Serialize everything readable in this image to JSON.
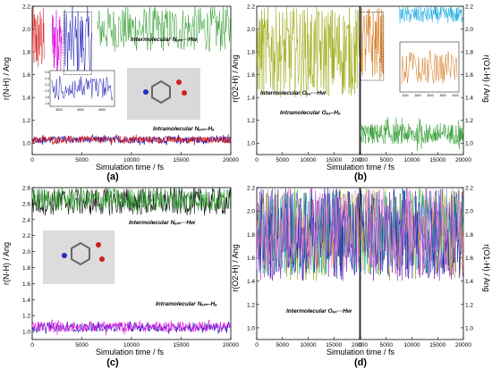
{
  "colors": {
    "red": "#d62020",
    "magenta": "#e010e0",
    "blue": "#1a1ab8",
    "green": "#2a9a2a",
    "olive": "#9aaa10",
    "orange": "#d07010",
    "cyan": "#10a8e0",
    "purple": "#8010a0",
    "pink": "#f07ad0",
    "black": "#111111",
    "lightgreen": "#3fbf3f",
    "teal": "#0aa0a0"
  },
  "chart_data": [
    {
      "type": "line",
      "panel_label": "(a)",
      "xlabel": "Simulation time / fs",
      "ylabel": "r(N-H) / Ang",
      "xlim": [
        0,
        20000
      ],
      "ylim": [
        0.9,
        2.2
      ],
      "x_ticks": [
        "0",
        "5000",
        "10000",
        "15000",
        "20000"
      ],
      "y_ticks": [
        "1.0",
        "1.2",
        "1.4",
        "1.6",
        "1.8",
        "2.0",
        "2.2"
      ],
      "annotations": [
        "Intermolecular Nₐₘ···Hw",
        "Intramolecular Nₐₘ–Hₐ"
      ],
      "series": [
        {
          "color": "red",
          "segment": "intermolecular",
          "x_range": [
            0,
            1200
          ],
          "y_range": [
            1.6,
            2.2
          ]
        },
        {
          "color": "magenta",
          "segment": "intermolecular",
          "x_range": [
            2000,
            3000
          ],
          "y_range": [
            1.6,
            2.2
          ]
        },
        {
          "color": "blue",
          "segment": "intermolecular",
          "x_range": [
            3200,
            6000
          ],
          "y_range": [
            1.55,
            2.2
          ]
        },
        {
          "color": "green",
          "segment": "intermolecular",
          "x_range": [
            6500,
            20000
          ],
          "y_range": [
            1.8,
            2.2
          ]
        },
        {
          "color": "blue",
          "segment": "intramolecular",
          "x_range": [
            0,
            20000
          ],
          "mean": 1.03,
          "y_range": [
            0.98,
            1.08
          ]
        },
        {
          "color": "red",
          "segment": "intramolecular",
          "x_range": [
            0,
            20000
          ],
          "mean": 1.03,
          "y_range": [
            0.98,
            1.08
          ]
        }
      ],
      "inset": {
        "x_ticks": [
          "3500",
          "4000",
          "4500"
        ],
        "y_ticks": [
          "1.6",
          "1.8",
          "2.0",
          "2.2",
          "2.4",
          "2.6"
        ]
      }
    },
    {
      "type": "line",
      "panel_label": "(b)",
      "xlabel": "Simulation time / fs",
      "ylabel": "r(O2-H) / Ang",
      "ylabel_right": "r(O1-H) / Ang",
      "xlim": [
        0,
        20000
      ],
      "ylim": [
        0.9,
        2.2
      ],
      "x_ticks_left": [
        "0",
        "5000",
        "10000",
        "15000",
        "20000"
      ],
      "x_ticks_right": [
        "0",
        "5000",
        "10000",
        "15000",
        "20000"
      ],
      "y_ticks": [
        "1.0",
        "1.2",
        "1.4",
        "1.6",
        "1.8",
        "2.0",
        "2.2"
      ],
      "annotations": [
        "Intermolecular Oₑₓ···Hw",
        "Intramolecular Oₑₓ–Hₑ"
      ],
      "series": [
        {
          "color": "olive",
          "subpanel": "left",
          "x_range": [
            0,
            20000
          ],
          "y_range": [
            1.4,
            2.2
          ]
        },
        {
          "color": "orange",
          "subpanel": "right",
          "x_range": [
            0,
            4500
          ],
          "y_range": [
            1.55,
            2.2
          ]
        },
        {
          "color": "cyan",
          "subpanel": "right",
          "x_range": [
            7500,
            20000
          ],
          "y_range": [
            2.05,
            2.2
          ]
        },
        {
          "color": "green",
          "subpanel": "right",
          "x_range": [
            0,
            20000
          ],
          "mean": 1.08,
          "y_range": [
            0.95,
            1.25
          ]
        }
      ],
      "inset": {
        "x_ticks": [
          "2000",
          "2500",
          "3000",
          "3500",
          "4000"
        ],
        "y_ticks": [
          "1.6",
          "1.8",
          "2.0",
          "2.2",
          "2.4",
          "2.6"
        ]
      }
    },
    {
      "type": "line",
      "panel_label": "(c)",
      "xlabel": "Simulation time / fs",
      "ylabel": "r(N-H) / Ang",
      "xlim": [
        0,
        20000
      ],
      "ylim": [
        0.9,
        2.8
      ],
      "x_ticks": [
        "0",
        "5000",
        "10000",
        "15000",
        "20000"
      ],
      "y_ticks": [
        "1.0",
        "1.2",
        "1.4",
        "1.6",
        "1.8",
        "2.0",
        "2.2",
        "2.4",
        "2.6",
        "2.8"
      ],
      "annotations": [
        "Intermolecular Nₐₘ···Hw",
        "Intramolecular Nₐₘ–Hₐ"
      ],
      "series": [
        {
          "color": "black",
          "segment": "intermolecular",
          "x_range": [
            0,
            20000
          ],
          "y_range": [
            2.45,
            2.8
          ]
        },
        {
          "color": "green",
          "segment": "intermolecular",
          "x_range": [
            0,
            20000
          ],
          "y_range": [
            2.5,
            2.8
          ]
        },
        {
          "color": "blue",
          "segment": "intramolecular",
          "x_range": [
            0,
            20000
          ],
          "mean": 1.05,
          "y_range": [
            0.98,
            1.15
          ]
        },
        {
          "color": "magenta",
          "segment": "intramolecular",
          "x_range": [
            0,
            20000
          ],
          "mean": 1.06,
          "y_range": [
            0.98,
            1.2
          ]
        }
      ]
    },
    {
      "type": "line",
      "panel_label": "(d)",
      "xlabel": "Simulation time / fs",
      "ylabel": "r(O2-H) / Ang",
      "ylabel_right": "r(O1-H) / Ang",
      "xlim": [
        0,
        20000
      ],
      "ylim": [
        0.9,
        2.2
      ],
      "x_ticks_left": [
        "0",
        "5000",
        "10000",
        "15000",
        "20000"
      ],
      "x_ticks_right": [
        "0",
        "5000",
        "10000",
        "15000",
        "20000"
      ],
      "y_ticks": [
        "1.0",
        "1.2",
        "1.4",
        "1.6",
        "1.8",
        "2.0",
        "2.2"
      ],
      "annotations": [
        "Intermolecular Oₑₓ···Hw"
      ],
      "series": [
        {
          "color": "purple",
          "x_range": [
            0,
            20000
          ],
          "y_range": [
            1.4,
            2.2
          ]
        },
        {
          "color": "olive",
          "x_range": [
            0,
            20000
          ],
          "y_range": [
            1.4,
            2.2
          ]
        },
        {
          "color": "teal",
          "x_range": [
            0,
            20000
          ],
          "y_range": [
            1.45,
            2.2
          ]
        },
        {
          "color": "blue",
          "x_range": [
            0,
            20000
          ],
          "y_range": [
            1.4,
            2.2
          ]
        },
        {
          "color": "pink",
          "x_range": [
            0,
            20000
          ],
          "y_range": [
            1.5,
            2.2
          ]
        }
      ]
    }
  ]
}
